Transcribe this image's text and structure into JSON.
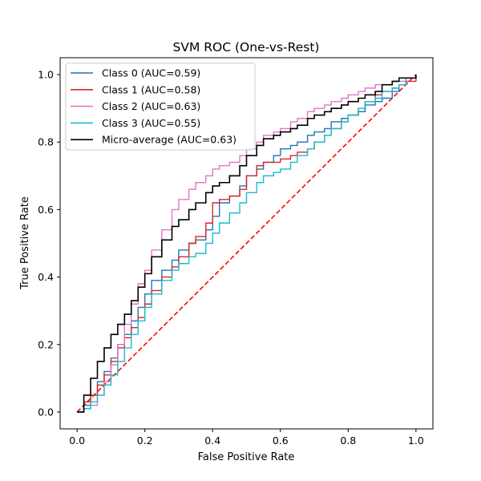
{
  "chart_data": {
    "type": "line",
    "title": "SVM ROC (One-vs-Rest)",
    "xlabel": "False Positive Rate",
    "ylabel": "True Positive Rate",
    "xlim": [
      -0.05,
      1.05
    ],
    "ylim": [
      -0.05,
      1.05
    ],
    "xticks": [
      0.0,
      0.2,
      0.4,
      0.6,
      0.8,
      1.0
    ],
    "yticks": [
      0.0,
      0.2,
      0.4,
      0.6,
      0.8,
      1.0
    ],
    "xtick_labels": [
      "0.0",
      "0.2",
      "0.4",
      "0.6",
      "0.8",
      "1.0"
    ],
    "ytick_labels": [
      "0.0",
      "0.2",
      "0.4",
      "0.6",
      "0.8",
      "1.0"
    ],
    "grid": false,
    "legend_position": "upper-left",
    "chance_line": {
      "x": [
        0,
        1
      ],
      "y": [
        0,
        1
      ],
      "color": "#ff0000",
      "style": "dashed"
    },
    "series": [
      {
        "name": "Class 0 (AUC=0.59)",
        "color": "#1f77b4",
        "x": [
          0,
          0.02,
          0.04,
          0.06,
          0.08,
          0.1,
          0.12,
          0.14,
          0.16,
          0.18,
          0.2,
          0.22,
          0.25,
          0.28,
          0.3,
          0.33,
          0.35,
          0.38,
          0.4,
          0.42,
          0.45,
          0.48,
          0.5,
          0.53,
          0.55,
          0.58,
          0.6,
          0.63,
          0.65,
          0.68,
          0.7,
          0.73,
          0.75,
          0.78,
          0.8,
          0.83,
          0.85,
          0.88,
          0.9,
          0.93,
          0.95,
          0.97,
          1.0
        ],
        "y": [
          0,
          0.02,
          0.05,
          0.09,
          0.12,
          0.16,
          0.2,
          0.23,
          0.27,
          0.31,
          0.35,
          0.39,
          0.42,
          0.45,
          0.48,
          0.5,
          0.51,
          0.54,
          0.58,
          0.62,
          0.64,
          0.67,
          0.7,
          0.72,
          0.74,
          0.76,
          0.78,
          0.79,
          0.8,
          0.82,
          0.83,
          0.84,
          0.86,
          0.87,
          0.88,
          0.89,
          0.91,
          0.92,
          0.93,
          0.95,
          0.97,
          0.99,
          1.0
        ]
      },
      {
        "name": "Class 1 (AUC=0.58)",
        "color": "#d62728",
        "x": [
          0,
          0.02,
          0.04,
          0.06,
          0.08,
          0.1,
          0.12,
          0.14,
          0.16,
          0.18,
          0.2,
          0.22,
          0.25,
          0.28,
          0.3,
          0.33,
          0.35,
          0.38,
          0.4,
          0.42,
          0.45,
          0.48,
          0.5,
          0.53,
          0.55,
          0.58,
          0.6,
          0.63,
          0.65,
          0.68,
          0.7,
          0.73,
          0.75,
          0.78,
          0.8,
          0.83,
          0.85,
          0.88,
          0.9,
          0.93,
          0.95,
          0.97,
          1.0
        ],
        "y": [
          0,
          0.03,
          0.05,
          0.08,
          0.11,
          0.15,
          0.19,
          0.22,
          0.25,
          0.28,
          0.32,
          0.36,
          0.4,
          0.43,
          0.46,
          0.5,
          0.52,
          0.56,
          0.62,
          0.63,
          0.64,
          0.66,
          0.7,
          0.73,
          0.74,
          0.74,
          0.75,
          0.76,
          0.77,
          0.78,
          0.8,
          0.82,
          0.84,
          0.86,
          0.88,
          0.9,
          0.92,
          0.94,
          0.95,
          0.96,
          0.97,
          0.98,
          0.99
        ]
      },
      {
        "name": "Class 2 (AUC=0.63)",
        "color": "#e377c2",
        "x": [
          0,
          0.02,
          0.04,
          0.06,
          0.08,
          0.1,
          0.12,
          0.14,
          0.16,
          0.18,
          0.2,
          0.22,
          0.25,
          0.28,
          0.3,
          0.33,
          0.35,
          0.38,
          0.4,
          0.42,
          0.45,
          0.48,
          0.5,
          0.53,
          0.55,
          0.58,
          0.6,
          0.63,
          0.65,
          0.68,
          0.7,
          0.73,
          0.75,
          0.78,
          0.8,
          0.83,
          0.85,
          0.88,
          0.9,
          0.93,
          0.95,
          0.97,
          1.0
        ],
        "y": [
          0,
          0.01,
          0.02,
          0.05,
          0.09,
          0.14,
          0.2,
          0.26,
          0.32,
          0.38,
          0.42,
          0.48,
          0.54,
          0.6,
          0.63,
          0.66,
          0.68,
          0.7,
          0.72,
          0.73,
          0.74,
          0.76,
          0.78,
          0.8,
          0.82,
          0.83,
          0.84,
          0.86,
          0.87,
          0.89,
          0.9,
          0.91,
          0.92,
          0.93,
          0.94,
          0.95,
          0.96,
          0.97,
          0.97,
          0.98,
          0.98,
          0.99,
          1.0
        ]
      },
      {
        "name": "Class 3 (AUC=0.55)",
        "color": "#17becf",
        "x": [
          0,
          0.02,
          0.04,
          0.06,
          0.08,
          0.1,
          0.12,
          0.14,
          0.16,
          0.18,
          0.2,
          0.22,
          0.25,
          0.28,
          0.3,
          0.33,
          0.35,
          0.38,
          0.4,
          0.42,
          0.45,
          0.48,
          0.5,
          0.53,
          0.55,
          0.58,
          0.6,
          0.63,
          0.65,
          0.68,
          0.7,
          0.73,
          0.75,
          0.78,
          0.8,
          0.83,
          0.85,
          0.88,
          0.9,
          0.93,
          0.95,
          0.97,
          1.0
        ],
        "y": [
          0,
          0.01,
          0.03,
          0.05,
          0.08,
          0.11,
          0.15,
          0.19,
          0.23,
          0.27,
          0.31,
          0.35,
          0.39,
          0.42,
          0.44,
          0.46,
          0.47,
          0.5,
          0.53,
          0.56,
          0.59,
          0.62,
          0.65,
          0.68,
          0.7,
          0.71,
          0.72,
          0.74,
          0.76,
          0.78,
          0.8,
          0.82,
          0.84,
          0.86,
          0.88,
          0.9,
          0.92,
          0.93,
          0.95,
          0.96,
          0.97,
          0.99,
          1.0
        ]
      },
      {
        "name": "Micro-average (AUC=0.63)",
        "color": "#000000",
        "x": [
          0,
          0.02,
          0.04,
          0.06,
          0.08,
          0.1,
          0.12,
          0.14,
          0.16,
          0.18,
          0.2,
          0.22,
          0.25,
          0.28,
          0.3,
          0.33,
          0.35,
          0.38,
          0.4,
          0.42,
          0.45,
          0.48,
          0.5,
          0.53,
          0.55,
          0.58,
          0.6,
          0.63,
          0.65,
          0.68,
          0.7,
          0.73,
          0.75,
          0.78,
          0.8,
          0.83,
          0.85,
          0.88,
          0.9,
          0.93,
          0.95,
          0.97,
          1.0
        ],
        "y": [
          0,
          0.05,
          0.1,
          0.15,
          0.19,
          0.23,
          0.26,
          0.29,
          0.33,
          0.37,
          0.41,
          0.46,
          0.51,
          0.55,
          0.57,
          0.6,
          0.62,
          0.65,
          0.67,
          0.68,
          0.7,
          0.73,
          0.76,
          0.79,
          0.81,
          0.82,
          0.83,
          0.84,
          0.85,
          0.87,
          0.88,
          0.89,
          0.9,
          0.91,
          0.92,
          0.93,
          0.94,
          0.95,
          0.97,
          0.98,
          0.99,
          0.99,
          1.0
        ]
      }
    ]
  }
}
